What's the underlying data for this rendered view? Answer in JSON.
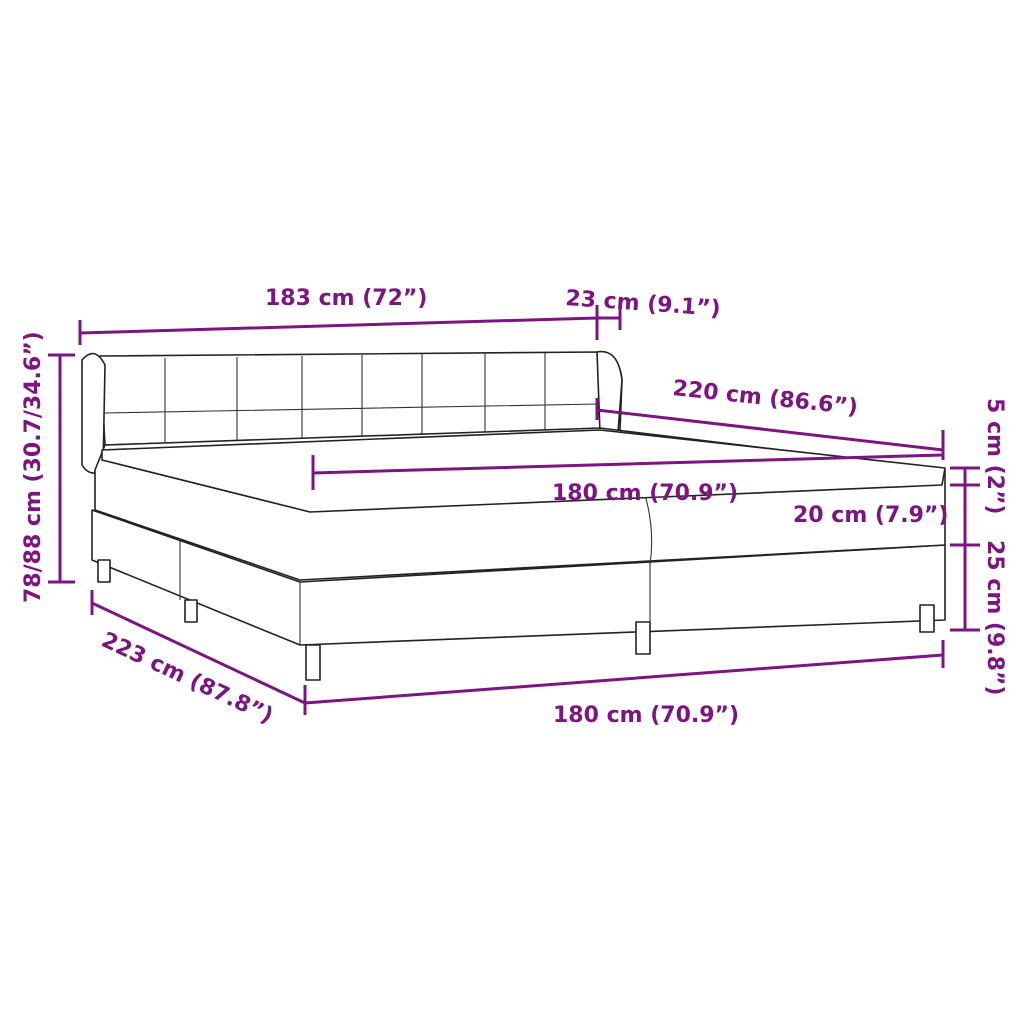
{
  "colors": {
    "dimension": "#7d1580",
    "outline": "#222222"
  },
  "dimensions": {
    "headboard_width": "183 cm (72”)",
    "headboard_depth": "23 cm (9.1”)",
    "mattress_length": "220 cm (86.6”)",
    "mattress_width": "180 cm (70.9”)",
    "mattress_height": "20 cm (7.9”)",
    "topper_height": "5 cm (2”)",
    "base_height": "25 cm (9.8”)",
    "base_width": "180 cm (70.9”)",
    "total_length": "223 cm (87.8”)",
    "total_height": "78/88 cm (30.7/34.6”)"
  }
}
